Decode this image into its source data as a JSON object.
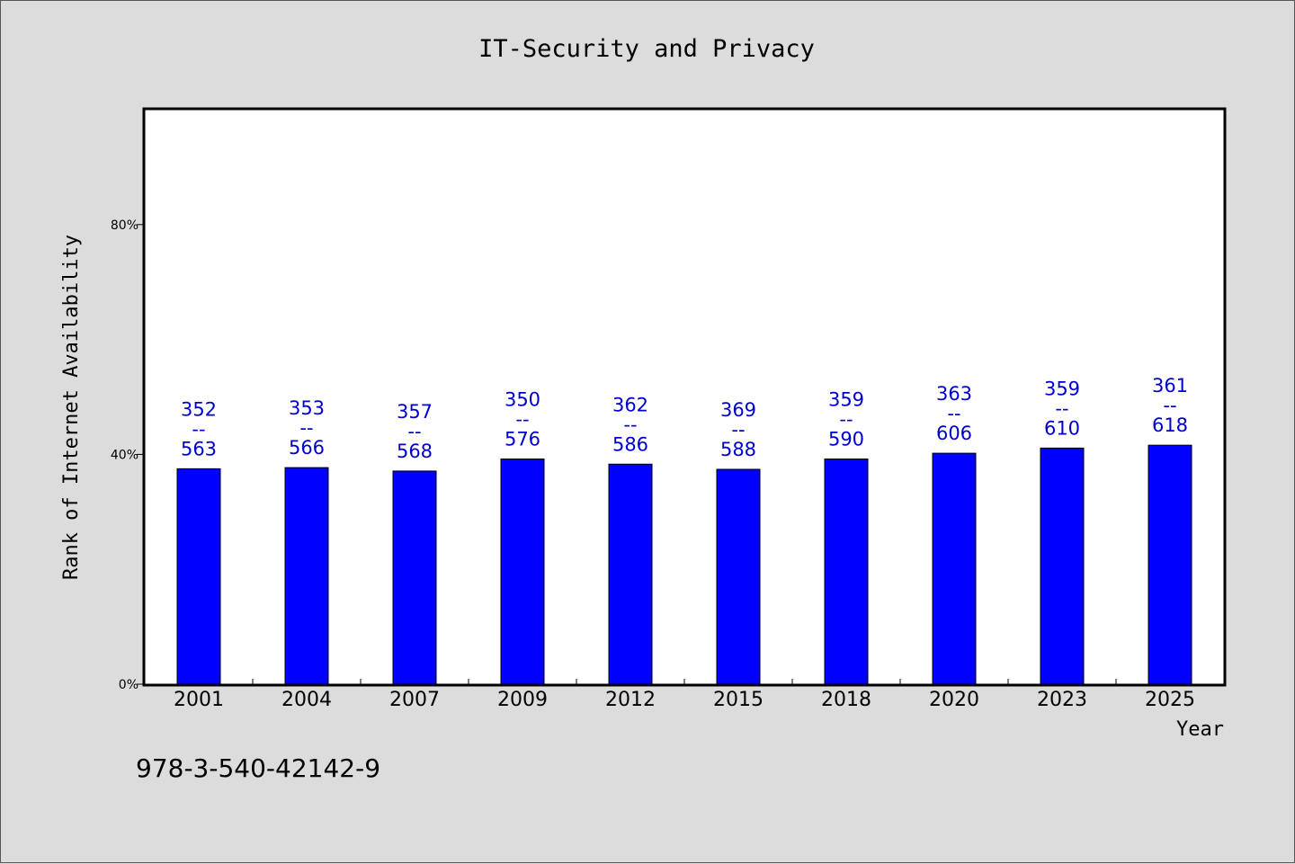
{
  "footer_text": "978-3-540-42142-9",
  "chart_data": {
    "type": "bar",
    "title": "IT-Security and Privacy",
    "xlabel": "Year",
    "ylabel": "Rank of Internet Availability",
    "categories": [
      "2001",
      "2004",
      "2007",
      "2009",
      "2012",
      "2015",
      "2018",
      "2020",
      "2023",
      "2025"
    ],
    "series": [
      {
        "values": [
          37.5,
          37.7,
          37.1,
          39.2,
          38.3,
          37.4,
          39.2,
          40.2,
          41.1,
          41.6
        ]
      }
    ],
    "annotations": {
      "top": [
        "352",
        "353",
        "357",
        "350",
        "362",
        "369",
        "359",
        "363",
        "359",
        "361"
      ],
      "separator": "--",
      "bottom": [
        "563",
        "566",
        "568",
        "576",
        "586",
        "588",
        "590",
        "606",
        "610",
        "618"
      ]
    },
    "yticks": [
      {
        "value": 0,
        "label": "0%"
      },
      {
        "value": 40,
        "label": "40%"
      },
      {
        "value": 80,
        "label": "80%"
      }
    ],
    "ylim": [
      0,
      100
    ],
    "grid": false,
    "legend": "none",
    "colors": {
      "bar": "#0000ff",
      "annotation": "#0000cc",
      "plot_background": "#ffffff",
      "page_background": "#dcdcdc",
      "axis": "#000000"
    }
  }
}
